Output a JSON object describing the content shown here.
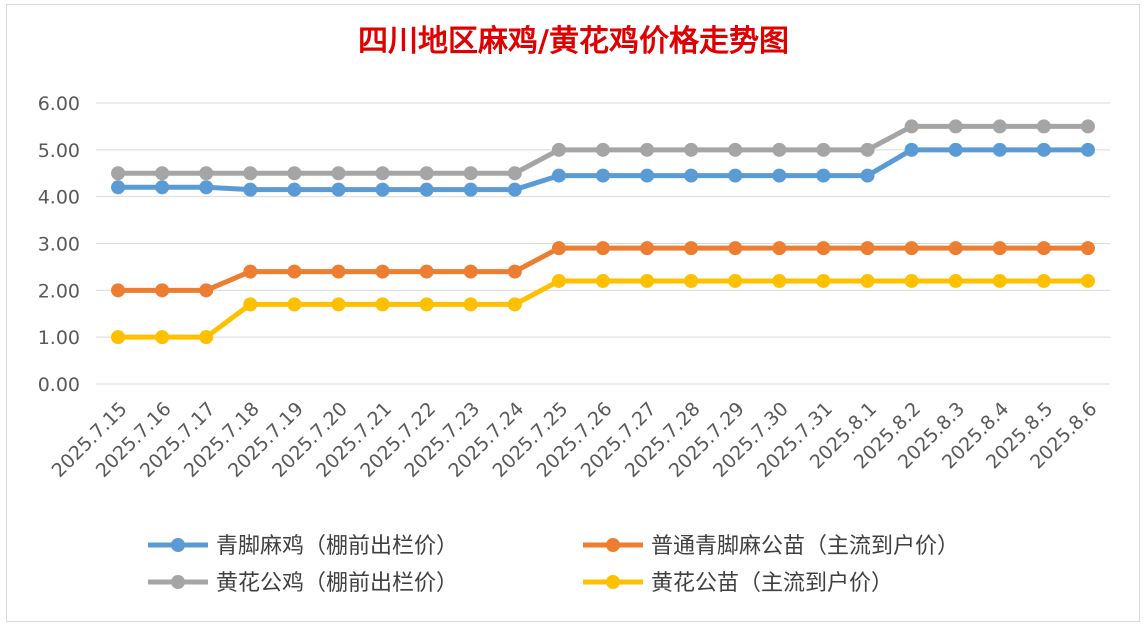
{
  "chart_data": {
    "type": "line",
    "title": "四川地区麻鸡/黄花鸡价格走势图",
    "xlabel": "",
    "ylabel": "",
    "ylim": [
      0,
      6
    ],
    "yticks": [
      "0.00",
      "1.00",
      "2.00",
      "3.00",
      "4.00",
      "5.00",
      "6.00"
    ],
    "grid": true,
    "legend_position": "bottom",
    "categories": [
      "2025.7.15",
      "2025.7.16",
      "2025.7.17",
      "2025.7.18",
      "2025.7.19",
      "2025.7.20",
      "2025.7.21",
      "2025.7.22",
      "2025.7.23",
      "2025.7.24",
      "2025.7.25",
      "2025.7.26",
      "2025.7.27",
      "2025.7.28",
      "2025.7.29",
      "2025.7.30",
      "2025.7.31",
      "2025.8.1",
      "2025.8.2",
      "2025.8.3",
      "2025.8.4",
      "2025.8.5",
      "2025.8.6"
    ],
    "series": [
      {
        "name": "青脚麻鸡（棚前出栏价）",
        "color": "#5b9bd5",
        "values": [
          4.2,
          4.2,
          4.2,
          4.15,
          4.15,
          4.15,
          4.15,
          4.15,
          4.15,
          4.15,
          4.45,
          4.45,
          4.45,
          4.45,
          4.45,
          4.45,
          4.45,
          4.45,
          5.0,
          5.0,
          5.0,
          5.0,
          5.0
        ]
      },
      {
        "name": "普通青脚麻公苗（主流到户价）",
        "color": "#ed7d31",
        "values": [
          2.0,
          2.0,
          2.0,
          2.4,
          2.4,
          2.4,
          2.4,
          2.4,
          2.4,
          2.4,
          2.9,
          2.9,
          2.9,
          2.9,
          2.9,
          2.9,
          2.9,
          2.9,
          2.9,
          2.9,
          2.9,
          2.9,
          2.9
        ]
      },
      {
        "name": "黄花公鸡（棚前出栏价）",
        "color": "#a5a5a5",
        "values": [
          4.5,
          4.5,
          4.5,
          4.5,
          4.5,
          4.5,
          4.5,
          4.5,
          4.5,
          4.5,
          5.0,
          5.0,
          5.0,
          5.0,
          5.0,
          5.0,
          5.0,
          5.0,
          5.5,
          5.5,
          5.5,
          5.5,
          5.5
        ]
      },
      {
        "name": "黄花公苗（主流到户价）",
        "color": "#ffc000",
        "values": [
          1.0,
          1.0,
          1.0,
          1.7,
          1.7,
          1.7,
          1.7,
          1.7,
          1.7,
          1.7,
          2.2,
          2.2,
          2.2,
          2.2,
          2.2,
          2.2,
          2.2,
          2.2,
          2.2,
          2.2,
          2.2,
          2.2,
          2.2
        ]
      }
    ],
    "legend_layout": [
      [
        "青脚麻鸡（棚前出栏价）",
        "普通青脚麻公苗（主流到户价）"
      ],
      [
        "黄花公鸡（棚前出栏价）",
        "黄花公苗（主流到户价）"
      ]
    ]
  }
}
